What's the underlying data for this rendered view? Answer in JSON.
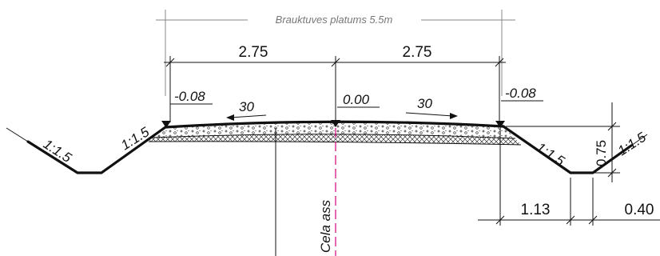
{
  "title": "Brauktuves platums 5.5m",
  "dimensions": {
    "left_half": "2.75",
    "right_half": "2.75",
    "ditch_bottom": "1.13",
    "ditch_outer": "0.40",
    "ditch_depth": "0.75"
  },
  "elevations": {
    "left_edge": "-0.08",
    "center": "0.00",
    "right_edge": "-0.08"
  },
  "crossfall": {
    "left": "30",
    "right": "30"
  },
  "slopes": {
    "left_outer": "1:1.5",
    "left_inner": "1:1.5",
    "right_inner": "1:1.5",
    "right_outer": "1:1.5"
  },
  "axis_label": "Cela ass",
  "colors": {
    "line": "#111111",
    "axis": "#d6007a",
    "title": "#777777",
    "hatch": "#333333"
  }
}
